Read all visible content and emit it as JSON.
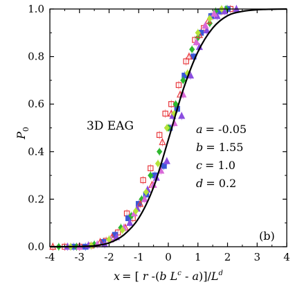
{
  "chart_data": {
    "type": "scatter",
    "title": "3D EAG",
    "panel_label": "(b)",
    "xlabel": {
      "x_var": "x",
      "eq": "= [ ",
      "r": "r",
      "minus": " -(",
      "b": "b",
      "L": " L",
      "c": "c",
      "sep": " - ",
      "a": "a",
      "close": ")]/",
      "L2": "L",
      "d": "d"
    },
    "ylabel": {
      "main": "P",
      "sub": "0"
    },
    "xlim": [
      -4,
      4
    ],
    "ylim": [
      0.0,
      1.0
    ],
    "x_ticks": [
      "-4",
      "-3",
      "-2",
      "-1",
      "0",
      "1",
      "2",
      "3",
      "4"
    ],
    "y_ticks": [
      "0.0",
      "0.2",
      "0.4",
      "0.6",
      "0.8",
      "1.0"
    ],
    "params": [
      {
        "name": "a",
        "value": "= -0.05"
      },
      {
        "name": "b",
        "value": "= 1.55"
      },
      {
        "name": "c",
        "value": "= 1.0"
      },
      {
        "name": "d",
        "value": "= 0.2"
      }
    ],
    "grid": false,
    "legend": "none",
    "curve": {
      "color": "#000000",
      "x": [
        -4.0,
        -3.5,
        -3.0,
        -2.5,
        -2.0,
        -1.5,
        -1.0,
        -0.5,
        0.0,
        0.5,
        1.0,
        1.5,
        2.0,
        2.5,
        3.0,
        3.5,
        4.0
      ],
      "y": [
        0.0,
        0.0,
        0.001,
        0.004,
        0.016,
        0.05,
        0.12,
        0.25,
        0.45,
        0.66,
        0.82,
        0.92,
        0.972,
        0.99,
        0.997,
        0.999,
        1.0
      ]
    },
    "series": [
      {
        "marker": "square-open",
        "color": "#e8383d",
        "x": [
          -3.5,
          -3.0,
          -2.6,
          -2.1,
          -1.7,
          -1.4,
          -1.2,
          -0.85,
          -0.6,
          -0.3,
          -0.1,
          0.1,
          0.35,
          0.6,
          0.9,
          1.2,
          1.5,
          1.8,
          2.1
        ],
        "y": [
          0.0,
          0.0,
          0.005,
          0.025,
          0.06,
          0.14,
          0.12,
          0.28,
          0.33,
          0.47,
          0.56,
          0.6,
          0.68,
          0.78,
          0.87,
          0.92,
          0.97,
          0.99,
          1.0
        ]
      },
      {
        "marker": "square",
        "color": "#3a57d6",
        "x": [
          -3.2,
          -2.8,
          -2.2,
          -1.8,
          -1.35,
          -1.0,
          -0.75,
          -0.45,
          -0.15,
          0.05,
          0.3,
          0.55,
          0.85,
          1.1,
          1.45,
          1.75,
          2.0
        ],
        "y": [
          0.0,
          0.0,
          0.02,
          0.05,
          0.12,
          0.18,
          0.22,
          0.3,
          0.34,
          0.5,
          0.58,
          0.72,
          0.8,
          0.9,
          0.97,
          0.99,
          1.0
        ]
      },
      {
        "marker": "diamond",
        "color": "#2eb82e",
        "x": [
          -3.7,
          -3.1,
          -2.5,
          -2.0,
          -1.6,
          -1.25,
          -0.9,
          -0.6,
          -0.3,
          0.0,
          0.25,
          0.5,
          0.8,
          1.0,
          1.4,
          1.6,
          1.95
        ],
        "y": [
          0.0,
          0.0,
          0.01,
          0.03,
          0.08,
          0.13,
          0.2,
          0.3,
          0.4,
          0.5,
          0.6,
          0.7,
          0.83,
          0.88,
          0.94,
          0.99,
          1.0
        ]
      },
      {
        "marker": "triangle-open",
        "color": "#e8383d",
        "x": [
          -3.9,
          -2.3,
          -1.9,
          -1.45,
          -0.95,
          -0.55,
          -0.2,
          0.1,
          0.4,
          0.7,
          1.05,
          1.35
        ],
        "y": [
          0.0,
          0.02,
          0.04,
          0.08,
          0.18,
          0.26,
          0.44,
          0.56,
          0.64,
          0.8,
          0.89,
          0.95
        ]
      },
      {
        "marker": "triangle",
        "color": "#8a4de0",
        "x": [
          -3.4,
          -2.7,
          -2.15,
          -1.75,
          -1.3,
          -1.05,
          -0.7,
          -0.4,
          -0.05,
          0.15,
          0.45,
          0.75,
          1.05,
          1.3,
          1.65,
          1.9,
          2.3
        ],
        "y": [
          0.0,
          0.005,
          0.01,
          0.04,
          0.1,
          0.16,
          0.24,
          0.29,
          0.36,
          0.55,
          0.55,
          0.72,
          0.84,
          0.91,
          0.97,
          0.99,
          1.0
        ]
      },
      {
        "marker": "triangle",
        "color": "#d96ad8",
        "x": [
          -3.0,
          -2.4,
          -1.95,
          -1.5,
          -1.15,
          -0.8,
          -0.5,
          -0.25,
          0.2,
          0.5,
          0.95,
          1.25,
          1.55
        ],
        "y": [
          0.0,
          0.01,
          0.03,
          0.08,
          0.14,
          0.2,
          0.26,
          0.32,
          0.52,
          0.64,
          0.86,
          0.93,
          0.98
        ]
      },
      {
        "marker": "diamond",
        "color": "#b5e33a",
        "x": [
          -3.3,
          -2.6,
          -2.0,
          -1.55,
          -1.1,
          -0.75,
          -0.35,
          -0.05,
          0.2,
          0.65,
          1.0,
          1.4,
          1.8
        ],
        "y": [
          0.0,
          0.005,
          0.03,
          0.07,
          0.15,
          0.23,
          0.35,
          0.5,
          0.56,
          0.73,
          0.9,
          0.96,
          1.0
        ]
      }
    ]
  }
}
